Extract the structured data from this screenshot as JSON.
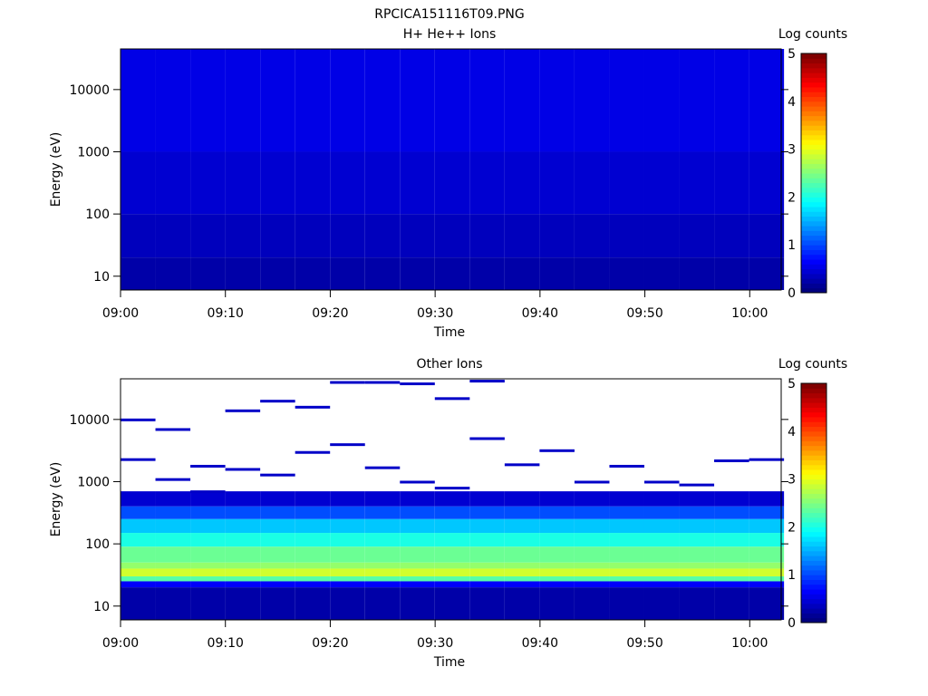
{
  "figure_title": "RPCICA151116T09.PNG",
  "chart_data": [
    {
      "type": "heatmap",
      "title": "H+ He++ Ions",
      "xlabel": "Time",
      "ylabel": "Energy (eV)",
      "colorbar_label": "Log counts",
      "x_tick_labels": [
        "09:00",
        "09:10",
        "09:20",
        "09:30",
        "09:40",
        "09:50",
        "10:00"
      ],
      "x_range_minutes": [
        0,
        63
      ],
      "y_scale": "log",
      "y_range": [
        6,
        45000
      ],
      "y_tick_labels": [
        "10",
        "100",
        "1000",
        "10000"
      ],
      "colorbar_ticks": [
        "0",
        "1",
        "2",
        "3",
        "4",
        "5"
      ],
      "colorbar_range": [
        0,
        5
      ],
      "time_bins": [
        "09:00",
        "09:03",
        "09:06",
        "09:10",
        "09:13",
        "09:16",
        "09:20",
        "09:23",
        "09:26",
        "09:29",
        "09:33",
        "09:36",
        "09:39",
        "09:43",
        "09:46",
        "09:49",
        "09:53",
        "09:56",
        "10:00"
      ],
      "row_profile": [
        {
          "energy_max": 45000,
          "log_counts": 0.5
        },
        {
          "energy_max": 1000,
          "log_counts": 0.4
        },
        {
          "energy_max": 100,
          "log_counts": 0.3
        },
        {
          "energy_max": 20,
          "log_counts": 0.2
        }
      ]
    },
    {
      "type": "heatmap",
      "title": "Other Ions",
      "xlabel": "Time",
      "ylabel": "Energy (eV)",
      "colorbar_label": "Log counts",
      "x_tick_labels": [
        "09:00",
        "09:10",
        "09:20",
        "09:30",
        "09:40",
        "09:50",
        "10:00"
      ],
      "x_range_minutes": [
        0,
        63
      ],
      "y_scale": "log",
      "y_range": [
        6,
        45000
      ],
      "y_tick_labels": [
        "10",
        "100",
        "1000",
        "10000"
      ],
      "colorbar_ticks": [
        "0",
        "1",
        "2",
        "3",
        "4",
        "5"
      ],
      "colorbar_range": [
        0,
        5
      ],
      "time_bins": [
        "09:00",
        "09:03",
        "09:06",
        "09:10",
        "09:13",
        "09:16",
        "09:20",
        "09:23",
        "09:26",
        "09:29",
        "09:33",
        "09:36",
        "09:39",
        "09:43",
        "09:46",
        "09:49",
        "09:53",
        "09:56",
        "10:00"
      ],
      "row_profile": [
        {
          "energy_max": 700,
          "log_counts": 0.4
        },
        {
          "energy_max": 400,
          "log_counts": 1.0
        },
        {
          "energy_max": 250,
          "log_counts": 1.6
        },
        {
          "energy_max": 150,
          "log_counts": 2.0
        },
        {
          "energy_max": 90,
          "log_counts": 2.4
        },
        {
          "energy_max": 50,
          "log_counts": 2.6
        },
        {
          "energy_max": 40,
          "log_counts": 2.9
        },
        {
          "energy_max": 30,
          "log_counts": 2.3
        },
        {
          "energy_max": 25,
          "log_counts": 0.6
        },
        {
          "energy_max": 20,
          "log_counts": 0.2
        }
      ],
      "sparse_high_energy_lines_eV": [
        2300,
        1100,
        1800,
        1600,
        1300,
        3000,
        4000,
        1700,
        1000,
        800,
        5000,
        1900,
        3200,
        1000,
        1800,
        1000,
        900,
        2200,
        2300,
        10000,
        7000,
        700,
        14000,
        20000,
        16000,
        40000,
        40000,
        38000,
        22000,
        42000
      ]
    }
  ]
}
